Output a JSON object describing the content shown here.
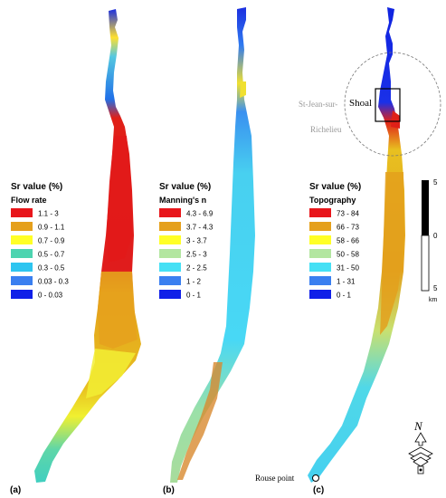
{
  "panels": [
    {
      "id": "a",
      "panel_label": "(a)",
      "legend_title": "Sr value (%)",
      "legend_subtitle": "Flow rate",
      "classes": [
        {
          "label": "1.1 - 3",
          "color": "#e8161b"
        },
        {
          "label": "0.9 - 1.1",
          "color": "#e5a01c"
        },
        {
          "label": "0.7 - 0.9",
          "color": "#ffff26"
        },
        {
          "label": "0.5 - 0.7",
          "color": "#4dd4b0"
        },
        {
          "label": "0.3 - 0.5",
          "color": "#2ec5f0"
        },
        {
          "label": "0.03 - 0.3",
          "color": "#3a7ff0"
        },
        {
          "label": "0 - 0.03",
          "color": "#1020e8"
        }
      ]
    },
    {
      "id": "b",
      "panel_label": "(b)",
      "legend_title": "Sr value (%)",
      "legend_subtitle": "Manning's n",
      "classes": [
        {
          "label": "4.3 - 6.9",
          "color": "#e8161b"
        },
        {
          "label": "3.7 - 4.3",
          "color": "#e5a01c"
        },
        {
          "label": "3 - 3.7",
          "color": "#ffff26"
        },
        {
          "label": "2.5 - 3",
          "color": "#b3e6a0"
        },
        {
          "label": "2 - 2.5",
          "color": "#45e0f5"
        },
        {
          "label": "1 - 2",
          "color": "#3a7ff0"
        },
        {
          "label": "0 - 1",
          "color": "#1020e8"
        }
      ]
    },
    {
      "id": "c",
      "panel_label": "(c)",
      "legend_title": "Sr value (%)",
      "legend_subtitle": "Topography",
      "classes": [
        {
          "label": "73 - 84",
          "color": "#e8161b"
        },
        {
          "label": "66 - 73",
          "color": "#e5a01c"
        },
        {
          "label": "58 - 66",
          "color": "#ffff26"
        },
        {
          "label": "50 - 58",
          "color": "#b3e6a0"
        },
        {
          "label": "31 - 50",
          "color": "#45e0f5"
        },
        {
          "label": "1 - 31",
          "color": "#3a7ff0"
        },
        {
          "label": "0 - 1",
          "color": "#1020e8"
        }
      ]
    }
  ],
  "annotations": {
    "town_line1": "St-Jean-sur-",
    "town_line2": "Richelieu",
    "shoal": "Shoal",
    "rouse_point": "Rouse point"
  },
  "scale_bar": {
    "top_label": "5",
    "mid_label": "0",
    "bottom_label": "5",
    "unit": "km"
  },
  "north_arrow": {
    "label": "N"
  }
}
